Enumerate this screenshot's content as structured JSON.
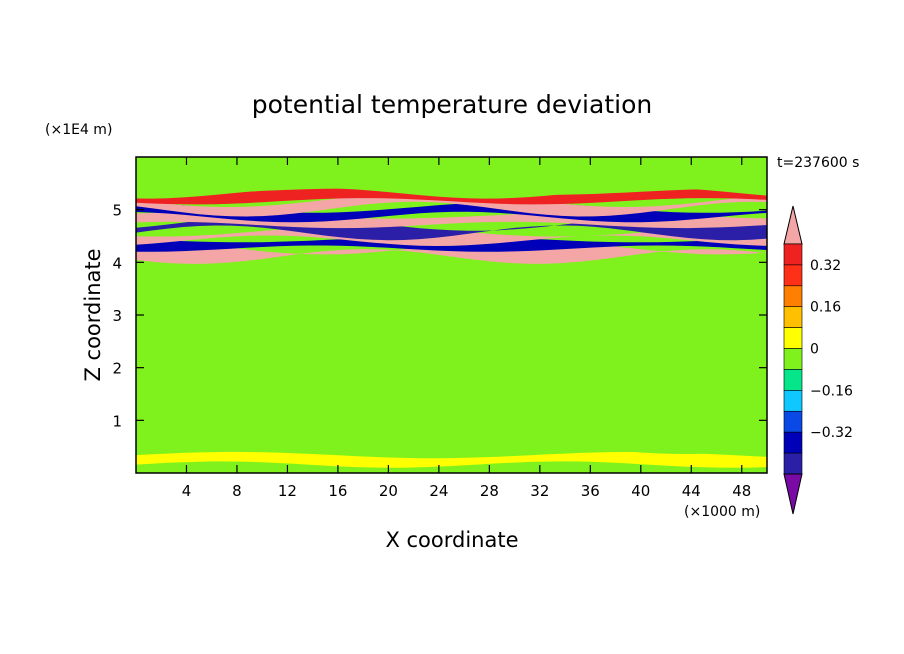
{
  "chart_data": {
    "type": "heatmap",
    "title": "potential temperature deviation",
    "xlabel": "X coordinate",
    "ylabel": "Z coordinate",
    "x_unit": "(×1000 m)",
    "y_unit": "(×1E4 m)",
    "time_label": "t=237600 s",
    "xlim": [
      0,
      50
    ],
    "ylim": [
      0,
      6
    ],
    "x_ticks": [
      4,
      8,
      12,
      16,
      20,
      24,
      28,
      32,
      36,
      40,
      44,
      48
    ],
    "y_ticks": [
      1,
      2,
      3,
      4,
      5
    ],
    "colorbar": {
      "levels": [
        -0.48,
        -0.4,
        -0.32,
        -0.24,
        -0.16,
        -0.08,
        0,
        0.08,
        0.16,
        0.24,
        0.32,
        0.4
      ],
      "labeled_levels": [
        0.32,
        0.16,
        0,
        -0.16,
        -0.32
      ],
      "colors": [
        "#7a0aa5",
        "#2b1fa8",
        "#0000b8",
        "#0a49e6",
        "#0fc8ff",
        "#05e68a",
        "#7ff21d",
        "#ffff00",
        "#ffc000",
        "#ff8000",
        "#ff3018",
        "#ef2222",
        "#f4a6a6"
      ]
    },
    "fields": {
      "background": "#7ff21d",
      "bands": [
        {
          "z": 0.25,
          "value": 0.0
        },
        {
          "z": 0.55,
          "value": -0.04
        },
        {
          "z": 0.85,
          "value": -0.04
        },
        {
          "z": 1.3,
          "value": -0.04
        },
        {
          "z": 1.7,
          "value": -0.04
        },
        {
          "z": 2.15,
          "value": -0.04
        },
        {
          "z": 2.5,
          "value": -0.04
        },
        {
          "z": 2.9,
          "value": -0.04
        },
        {
          "z": 3.4,
          "value": -0.04
        },
        {
          "z": 3.8,
          "value": -0.04
        },
        {
          "z": 4.05,
          "value": -0.04
        },
        {
          "z": 4.2,
          "value": 0.44
        },
        {
          "z": 4.35,
          "value": -0.4
        },
        {
          "z": 4.5,
          "value": 0.44
        },
        {
          "z": 4.65,
          "value": -0.48
        },
        {
          "z": 4.8,
          "value": 0.44
        },
        {
          "z": 4.95,
          "value": -0.4
        },
        {
          "z": 5.1,
          "value": 0.44
        },
        {
          "z": 5.25,
          "value": 0.32
        },
        {
          "z": 5.4,
          "value": -0.04
        }
      ]
    }
  }
}
